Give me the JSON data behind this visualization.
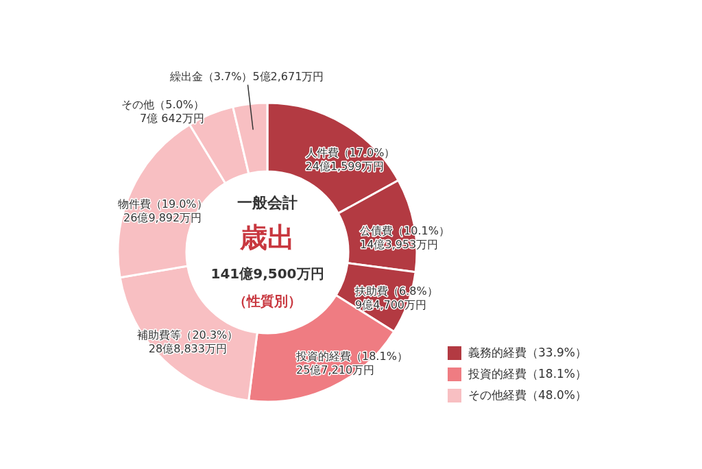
{
  "chart_data": {
    "type": "donut",
    "title": "歳出",
    "subtitle": "一般会計",
    "categories": [
      "人件費（17.0%）",
      "公債費（10.1%）",
      "扶助費（6.8%）",
      "投資的経費（18.1%）",
      "補助費等（20.3%）",
      "物件費（19.0%）",
      "その他（5.0%）",
      "繰出金（3.7%）"
    ],
    "values": [
      17.0,
      10.1,
      6.8,
      18.1,
      20.3,
      19.0,
      5.0,
      3.7
    ],
    "colors": [
      "#b33a42",
      "#b33a42",
      "#b33a42",
      "#ef7c82",
      "#f8bfc2",
      "#f8bfc2",
      "#f8bfc2",
      "#f8bfc2"
    ],
    "annotations": [
      "24億1,599万円",
      "14億3,953万円",
      "9億4,700万円",
      "25億7,210万円",
      "28億8,833万円",
      "26億9,892万円",
      "7億 642万円",
      "5億2,671万円",
      "141億9,500万円",
      "（性質別）",
      "義務的経費（33.9%）",
      "投資的経費（18.1%）",
      "その他経費（48.0%）"
    ]
  }
}
